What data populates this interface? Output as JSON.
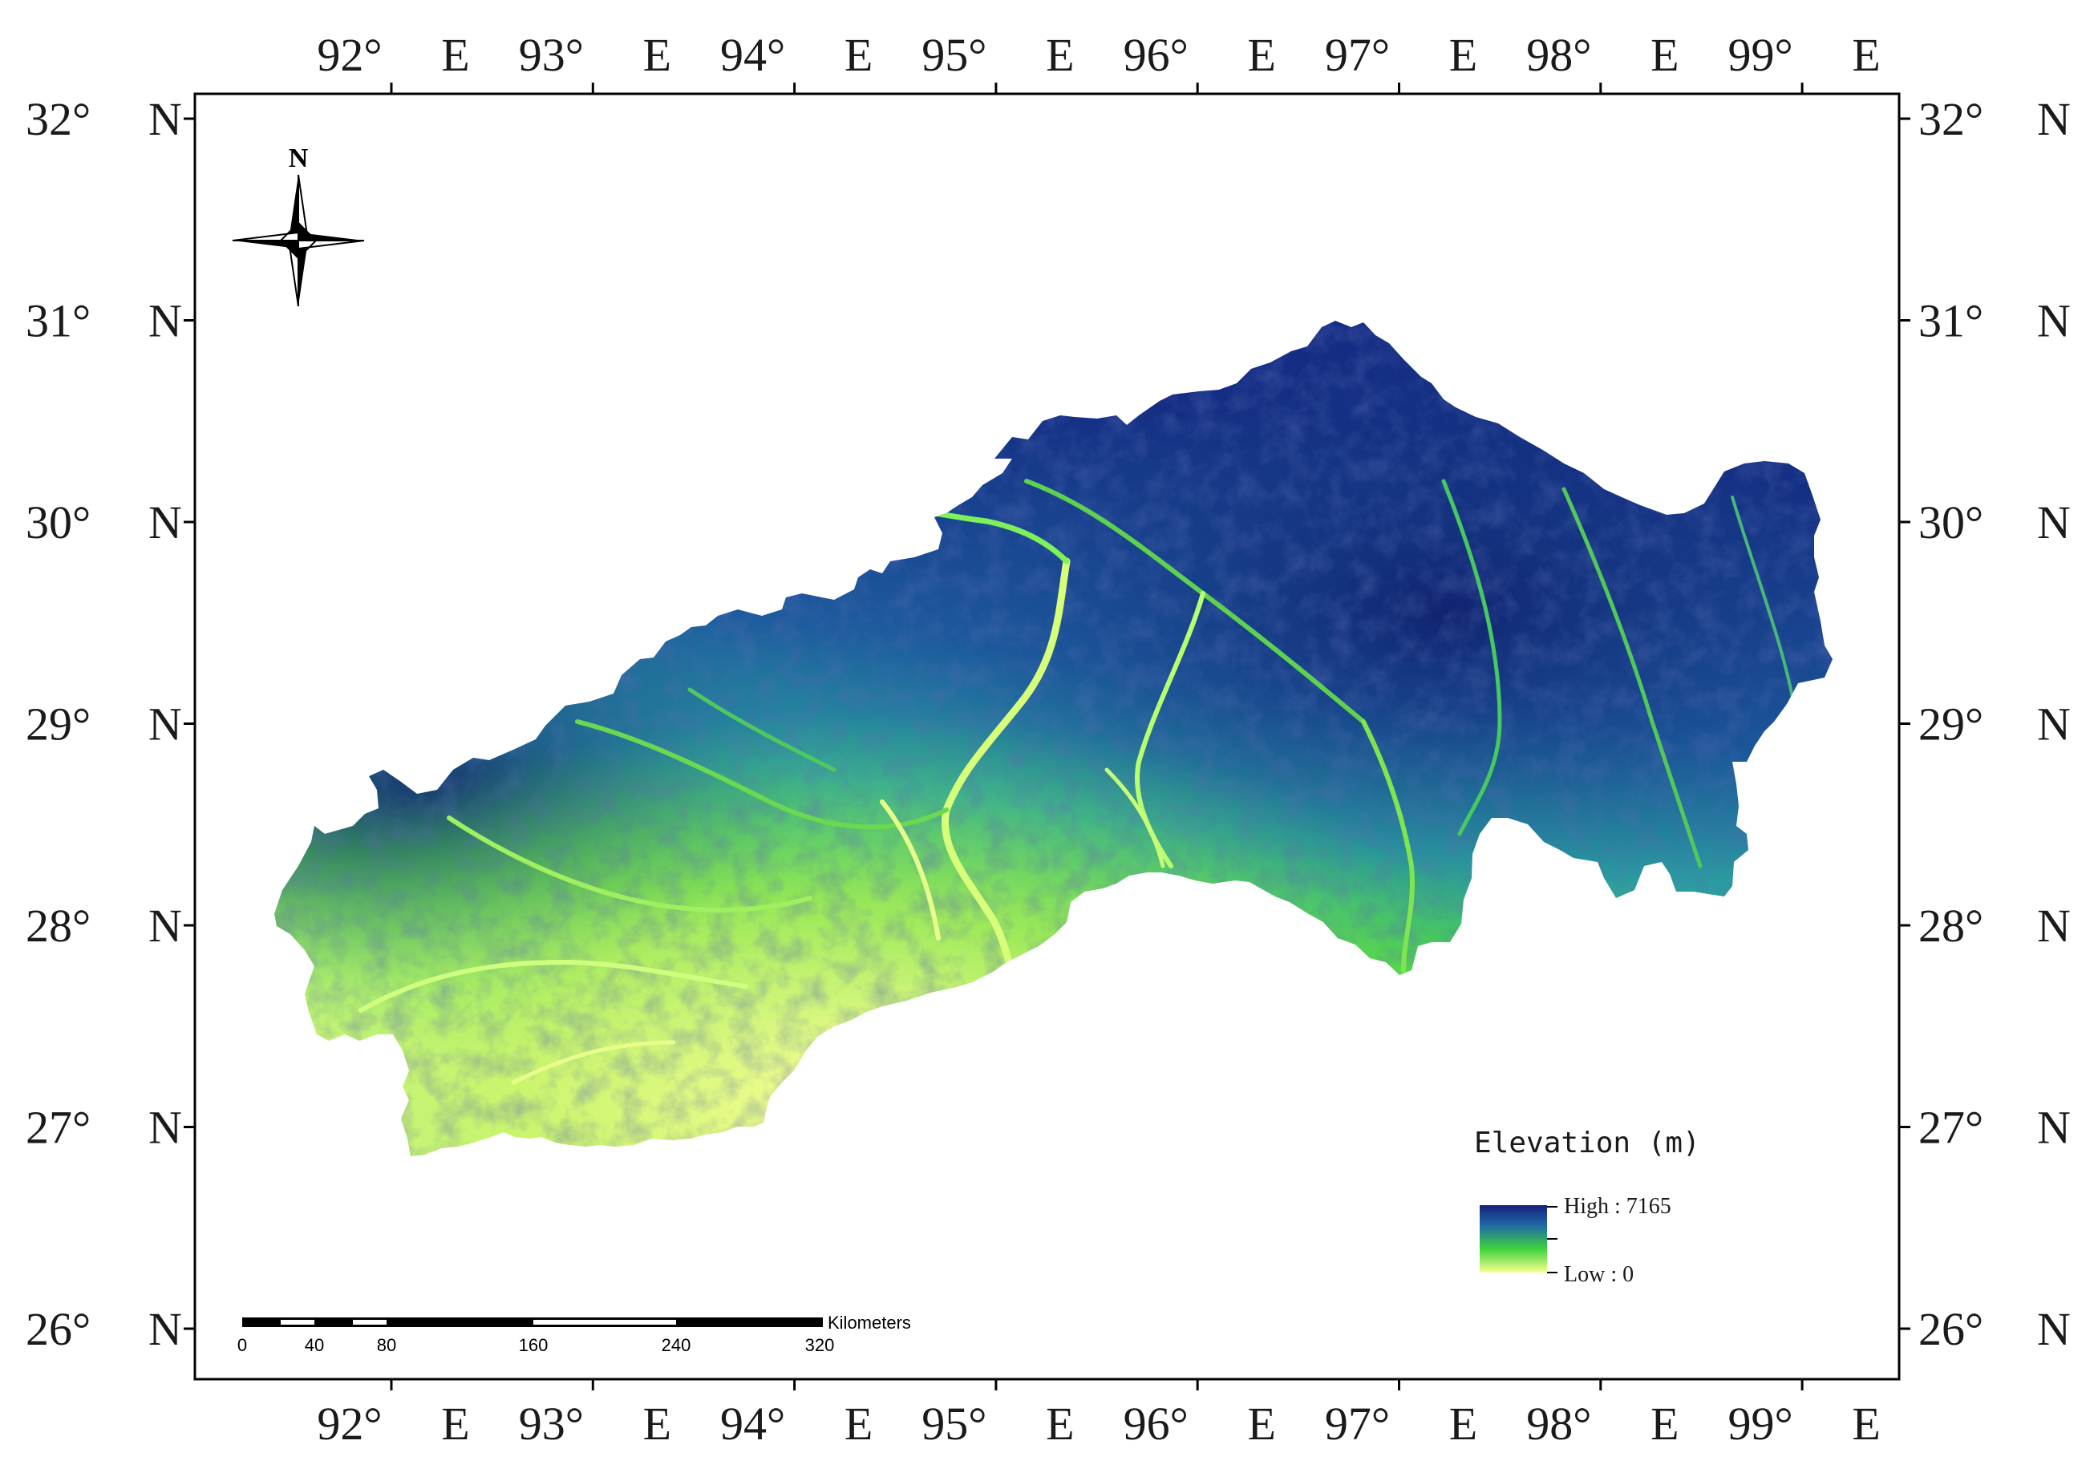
{
  "map": {
    "longitude_labels": [
      {
        "deg": "92°",
        "hemi": "E",
        "value": 92
      },
      {
        "deg": "93°",
        "hemi": "E",
        "value": 93
      },
      {
        "deg": "94°",
        "hemi": "E",
        "value": 94
      },
      {
        "deg": "95°",
        "hemi": "E",
        "value": 95
      },
      {
        "deg": "96°",
        "hemi": "E",
        "value": 96
      },
      {
        "deg": "97°",
        "hemi": "E",
        "value": 97
      },
      {
        "deg": "98°",
        "hemi": "E",
        "value": 98
      },
      {
        "deg": "99°",
        "hemi": "E",
        "value": 99
      }
    ],
    "latitude_labels": [
      {
        "deg": "32°",
        "hemi": "N",
        "value": 32
      },
      {
        "deg": "31°",
        "hemi": "N",
        "value": 31
      },
      {
        "deg": "30°",
        "hemi": "N",
        "value": 30
      },
      {
        "deg": "29°",
        "hemi": "N",
        "value": 29
      },
      {
        "deg": "28°",
        "hemi": "N",
        "value": 28
      },
      {
        "deg": "27°",
        "hemi": "N",
        "value": 27
      },
      {
        "deg": "26°",
        "hemi": "N",
        "value": 26
      }
    ],
    "north_arrow": {
      "label": "N",
      "icon": "north-arrow-icon"
    },
    "legend": {
      "title": "Elevation (m)",
      "high_label": "High : 7165",
      "low_label": "Low : 0",
      "high_value": 7165,
      "low_value": 0,
      "colors": [
        "#1a237e",
        "#1f6aa0",
        "#3cc83c",
        "#f7ff8c"
      ]
    },
    "scale_bar": {
      "unit": "Kilometers",
      "ticks": [
        "0",
        "40",
        "80",
        "160",
        "240",
        "320"
      ]
    },
    "colors": {
      "high": "#10206e",
      "mid_high": "#1e5f9c",
      "mid": "#2aa7a0",
      "low_mid": "#4ed84a",
      "low": "#f6ff8e"
    }
  }
}
